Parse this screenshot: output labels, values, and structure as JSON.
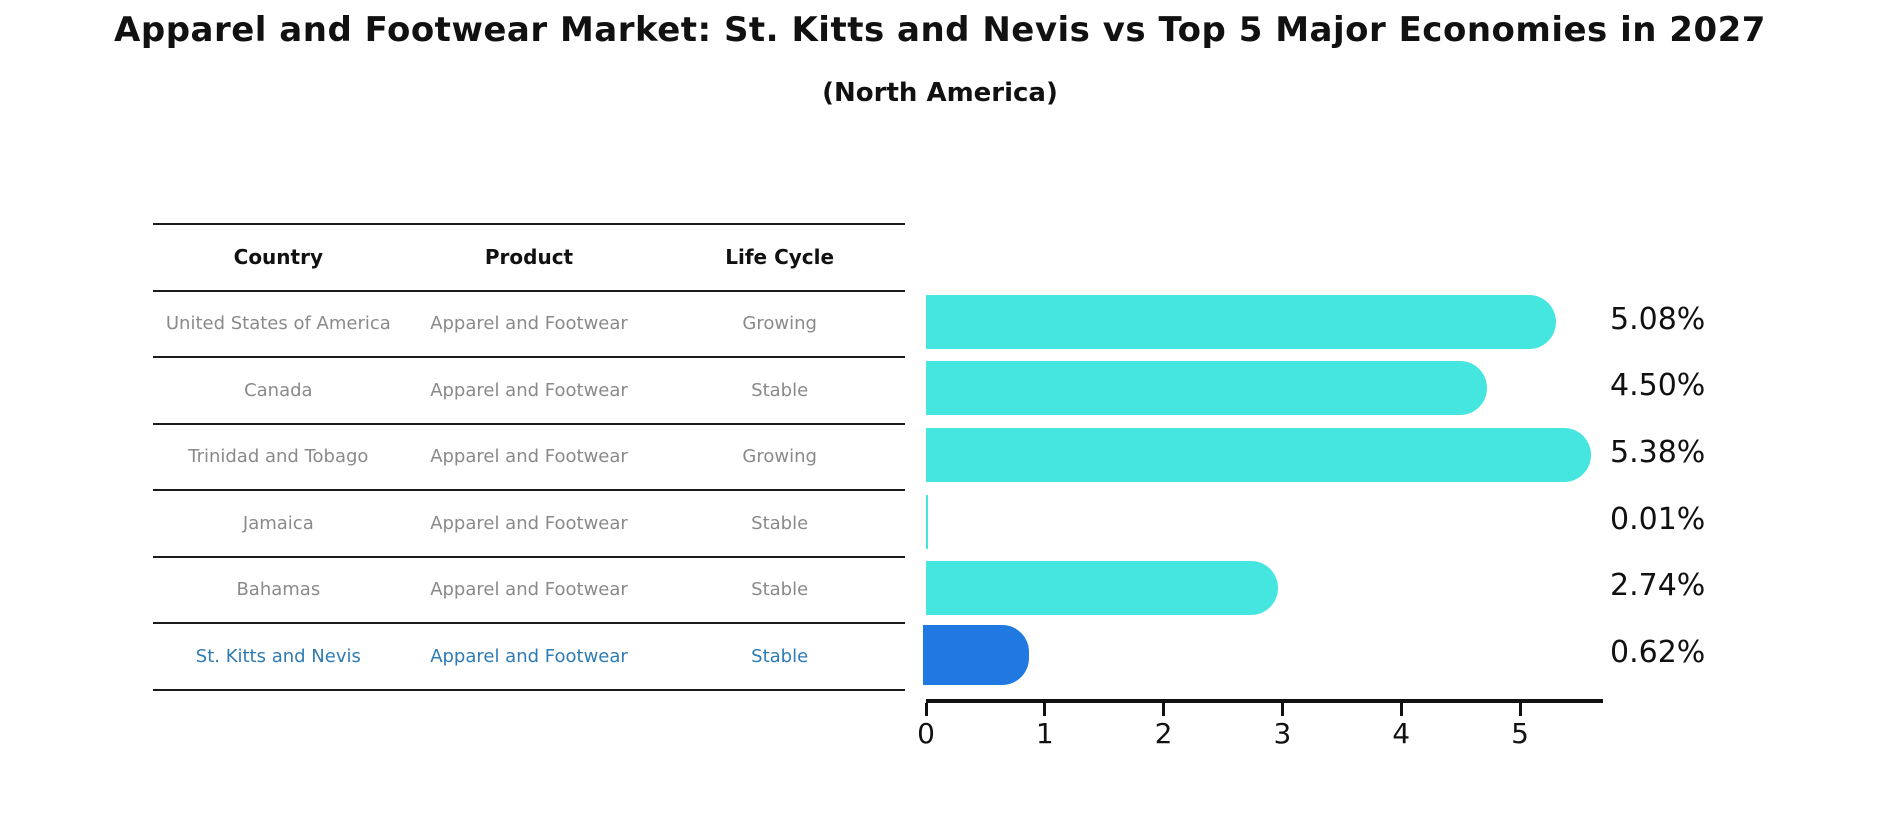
{
  "title": "Apparel and Footwear Market: St. Kitts and Nevis vs Top 5 Major Economies in 2027",
  "subtitle": "(North America)",
  "table": {
    "headers": [
      "Country",
      "Product",
      "Life Cycle"
    ],
    "rows": [
      {
        "country": "United States of America",
        "product": "Apparel and Footwear",
        "life_cycle": "Growing",
        "highlight": false
      },
      {
        "country": "Canada",
        "product": "Apparel and Footwear",
        "life_cycle": "Stable",
        "highlight": false
      },
      {
        "country": "Trinidad and Tobago",
        "product": "Apparel and Footwear",
        "life_cycle": "Growing",
        "highlight": false
      },
      {
        "country": "Jamaica",
        "product": "Apparel and Footwear",
        "life_cycle": "Stable",
        "highlight": false
      },
      {
        "country": "Bahamas",
        "product": "Apparel and Footwear",
        "life_cycle": "Stable",
        "highlight": false
      },
      {
        "country": "St. Kitts and Nevis",
        "product": "Apparel and Footwear",
        "life_cycle": "Stable",
        "highlight": true
      }
    ]
  },
  "chart_data": {
    "type": "bar",
    "orientation": "horizontal",
    "title": "Apparel and Footwear Market: St. Kitts and Nevis vs Top 5 Major Economies in 2027 (North America)",
    "categories": [
      "United States of America",
      "Canada",
      "Trinidad and Tobago",
      "Jamaica",
      "Bahamas",
      "St. Kitts and Nevis"
    ],
    "values": [
      5.08,
      4.5,
      5.38,
      0.01,
      2.74,
      0.62
    ],
    "value_labels": [
      "5.08%",
      "4.50%",
      "5.38%",
      "0.01%",
      "2.74%",
      "0.62%"
    ],
    "x_ticks": [
      0,
      1,
      2,
      3,
      4,
      5
    ],
    "xlim": [
      0,
      5.7
    ],
    "xlabel": "",
    "ylabel": "",
    "grid": false,
    "legend": false,
    "highlight_index": 5
  },
  "colors": {
    "bar": "#45e6df",
    "highlight_bar": "#2079e0",
    "highlight_text": "#2e7bb5",
    "text_primary": "#111111",
    "text_muted": "#8a8a8a",
    "rule": "#1c1c1c"
  }
}
